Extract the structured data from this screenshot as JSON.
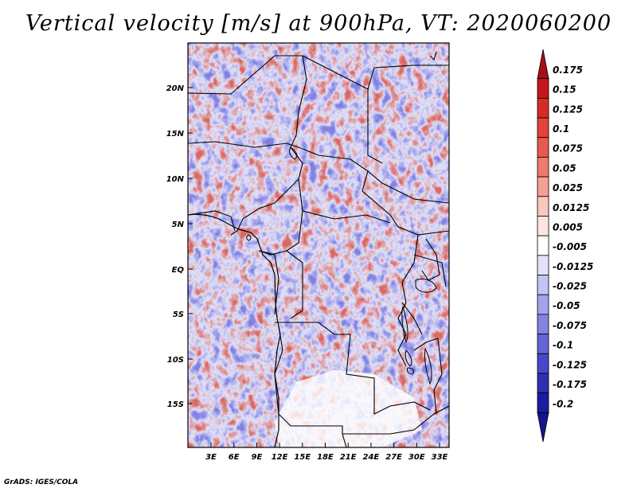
{
  "title": "Vertical velocity [m/s] at 900hPa, VT: 2020060200",
  "credit": "GrADS: IGES/COLA",
  "map": {
    "lat_labels": [
      "20N",
      "15N",
      "10N",
      "5N",
      "EQ",
      "5S",
      "10S",
      "15S"
    ],
    "lon_labels": [
      "3E",
      "6E",
      "9E",
      "12E",
      "15E",
      "18E",
      "21E",
      "24E",
      "27E",
      "30E",
      "33E"
    ]
  },
  "colorbar": {
    "labels": [
      "0.175",
      "0.15",
      "0.125",
      "0.1",
      "0.075",
      "0.05",
      "0.025",
      "0.0125",
      "0.005",
      "-0.005",
      "-0.0125",
      "-0.025",
      "-0.05",
      "-0.075",
      "-0.1",
      "-0.125",
      "-0.175",
      "-0.2"
    ],
    "colors": [
      "#a50f15",
      "#c4171c",
      "#d92b26",
      "#e3433b",
      "#e85a4e",
      "#ee7b6d",
      "#f4a094",
      "#f9c7bf",
      "#fde6e2",
      "#ffffff",
      "#e2e2fb",
      "#c3c3f4",
      "#a3a3ec",
      "#8383e2",
      "#6464d6",
      "#4747c7",
      "#2f2fb4",
      "#1c1ca0",
      "#151590"
    ]
  }
}
